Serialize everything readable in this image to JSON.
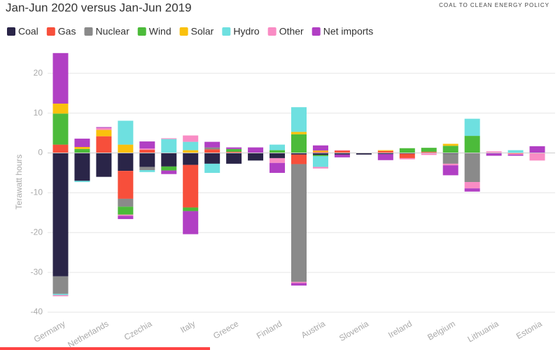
{
  "chart_data": {
    "type": "bar",
    "stacked": true,
    "title": "Jan-Jun 2020 versus Jan-Jun 2019",
    "logo_text": "COAL TO CLEAN ENERGY POLICY",
    "y_label": "Terawatt hours",
    "categories": [
      "Germany",
      null,
      "Netherlands",
      null,
      "Czechia",
      null,
      "Italy",
      null,
      "Greece",
      null,
      "Finland",
      null,
      "Austria",
      null,
      "Slovenia",
      null,
      "Ireland",
      null,
      "Belgium",
      null,
      "Lithuania",
      null,
      "Estonia"
    ],
    "series": [
      {
        "name": "Coal",
        "color": "#2a2548",
        "values": [
          -31,
          -7,
          -6,
          -4.5,
          -3.5,
          -3.4,
          -3,
          -2.7,
          -2.7,
          -1.9,
          -1.3,
          -0.4,
          -0.5,
          -0.4,
          -0.4,
          -0.3,
          -0.2,
          0,
          -0.2,
          0,
          0,
          0,
          0
        ]
      },
      {
        "name": "Gas",
        "color": "#f74f3b",
        "values": [
          2.1,
          0,
          4.2,
          -7,
          0.8,
          0,
          -10.7,
          0.9,
          0.3,
          0,
          0,
          -2.4,
          0.3,
          0.6,
          0,
          0.5,
          -1.1,
          0.3,
          0,
          0,
          0,
          -0.2,
          0
        ]
      },
      {
        "name": "Nuclear",
        "color": "#8a8a8a",
        "values": [
          -4.4,
          0,
          0,
          -2,
          -0.8,
          0,
          0,
          0.5,
          0,
          0,
          0,
          -29.6,
          0,
          0,
          0,
          0,
          0,
          0,
          -2.5,
          -7.3,
          0,
          0,
          0
        ]
      },
      {
        "name": "Wind",
        "color": "#4cbb3a",
        "values": [
          7.8,
          1,
          0,
          -2,
          0,
          -1,
          -0.9,
          0,
          0.7,
          0,
          0.7,
          4.7,
          -0.3,
          0,
          0,
          0,
          1.2,
          1,
          1.8,
          4.3,
          0,
          0,
          0
        ]
      },
      {
        "name": "Solar",
        "color": "#fac10d",
        "values": [
          2.5,
          0.5,
          1.6,
          2.1,
          0,
          0,
          0.7,
          0,
          0,
          0,
          0,
          0.6,
          0.3,
          0,
          0,
          0.2,
          0,
          0,
          0.5,
          0,
          0.1,
          0,
          0
        ]
      },
      {
        "name": "Hydro",
        "color": "#6ee0e0",
        "values": [
          -0.3,
          -0.3,
          0,
          6,
          -0.5,
          3.5,
          2.1,
          -2.3,
          0,
          0,
          1.4,
          6.2,
          -2.7,
          0,
          0,
          0,
          0,
          0,
          0,
          4.3,
          0,
          0.7,
          0
        ]
      },
      {
        "name": "Other",
        "color": "#f98cc4",
        "values": [
          -0.3,
          0,
          0.5,
          -0.3,
          0.3,
          0.2,
          1.6,
          0,
          0,
          0,
          -1.2,
          -0.3,
          -0.4,
          0.1,
          0,
          0,
          -0.3,
          -0.5,
          -0.4,
          -1.6,
          0.3,
          -0.2,
          -1.9
        ]
      },
      {
        "name": "Net imports",
        "color": "#b13fc4",
        "values": [
          12.7,
          2.1,
          0.2,
          -0.8,
          1.8,
          -0.9,
          -5.8,
          1.4,
          0.4,
          1.4,
          -2.5,
          -0.6,
          1.3,
          -0.7,
          0,
          -1.5,
          0,
          0,
          -2.5,
          -0.8,
          -0.7,
          -0.3,
          1.7
        ]
      }
    ],
    "ylim": [
      -40,
      27
    ],
    "yticks": [
      -40,
      -30,
      -20,
      -10,
      0,
      10,
      20
    ],
    "grid": true
  }
}
